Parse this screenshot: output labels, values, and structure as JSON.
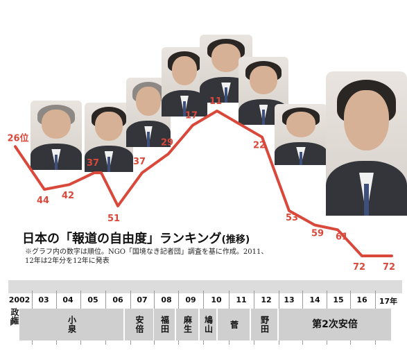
{
  "chart_data": {
    "type": "line",
    "title": "日本の「報道の自由度」ランキング",
    "subtitle": "(推移)",
    "note": "※グラフ内の数字は順位。NGO「国境なき記者団」調査を基に作成。2011、12年は2年分を12年に発表",
    "x": [
      "2002",
      "03",
      "04",
      "05",
      "06",
      "07",
      "08",
      "09",
      "10",
      "11",
      "12",
      "13",
      "14",
      "15",
      "16",
      "17年"
    ],
    "points": [
      {
        "x": "2002",
        "y": 26,
        "label": "26位"
      },
      {
        "x": "2002-03",
        "y": 44,
        "label": "44"
      },
      {
        "x": "03-04",
        "y": 42,
        "label": "42"
      },
      {
        "x": "04-05",
        "y": 37,
        "label": "37"
      },
      {
        "x": "05-06",
        "y": 37,
        "label": ""
      },
      {
        "x": "06-07",
        "y": 51,
        "label": "51"
      },
      {
        "x": "07-08",
        "y": 37,
        "label": "37"
      },
      {
        "x": "08-09",
        "y": 29,
        "label": "29"
      },
      {
        "x": "09-10",
        "y": 17,
        "label": "17"
      },
      {
        "x": "10-11",
        "y": 11,
        "label": "11"
      },
      {
        "x": "11-12",
        "y": 22,
        "label": "22"
      },
      {
        "x": "12-13",
        "y": 53,
        "label": "53"
      },
      {
        "x": "13-14",
        "y": 59,
        "label": "59"
      },
      {
        "x": "14-15",
        "y": 61,
        "label": "61"
      },
      {
        "x": "15-16",
        "y": 72,
        "label": "72"
      },
      {
        "x": "16-17",
        "y": 72,
        "label": "72"
      }
    ],
    "y_inverted": true,
    "ylim": [
      0,
      80
    ],
    "line_color": "#d9483a",
    "grid": false
  },
  "timeline": {
    "row_label": "政権",
    "prime_ministers": [
      {
        "name": "小泉"
      },
      {
        "name": "安倍"
      },
      {
        "name": "福田"
      },
      {
        "name": "麻生"
      },
      {
        "name": "鳩山"
      },
      {
        "name": "菅"
      },
      {
        "name": "野田"
      },
      {
        "name": "第2次安倍"
      }
    ]
  },
  "colors": {
    "line": "#d9483a",
    "label": "#d9483a",
    "bar": "#cfcfcf"
  }
}
